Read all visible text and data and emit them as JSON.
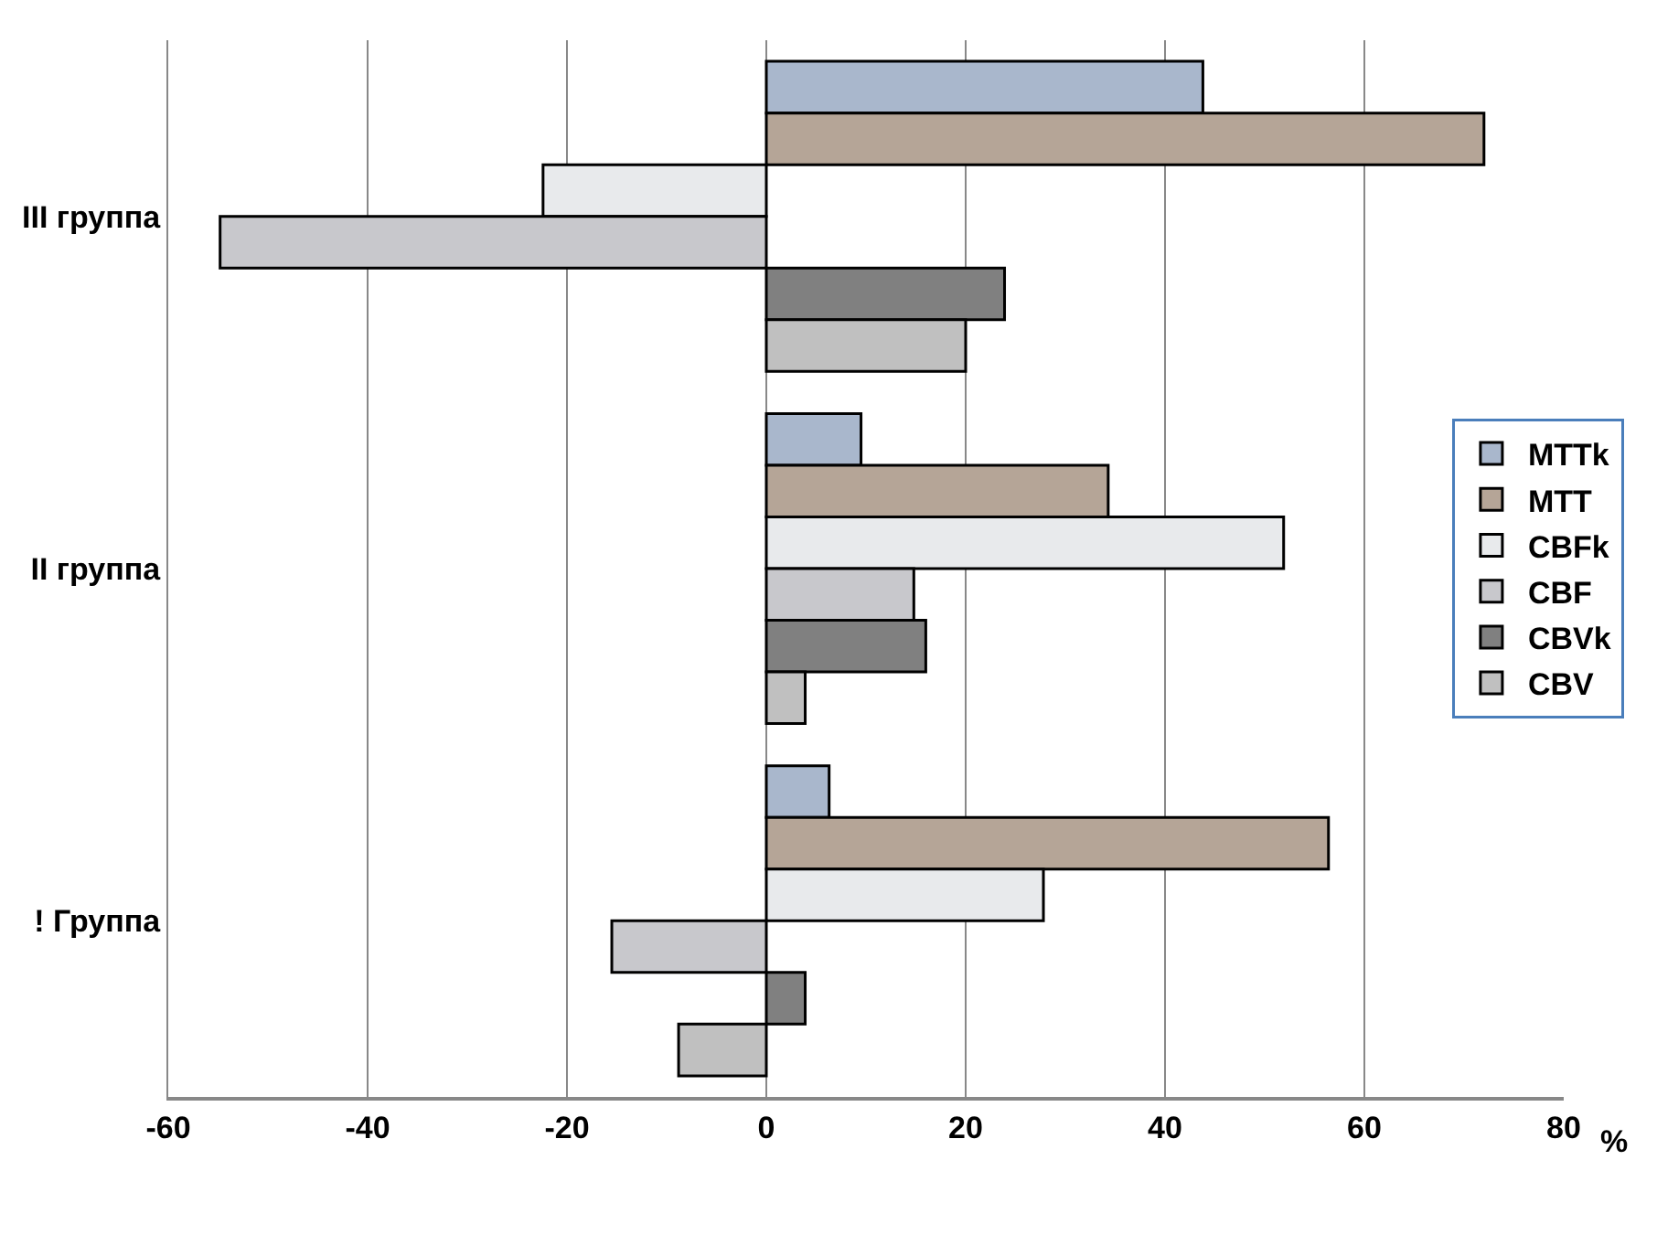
{
  "chart_data": {
    "type": "bar",
    "orientation": "horizontal",
    "xlabel": "%",
    "categories": [
      "III группа",
      "II группа",
      "! Группа"
    ],
    "series": [
      {
        "name": "MTTk",
        "color": "#a9b7cc",
        "values": [
          43.8,
          9.5,
          6.3
        ]
      },
      {
        "name": "MTT",
        "color": "#b5a597",
        "values": [
          72,
          34.3,
          56.4
        ]
      },
      {
        "name": "CBFk",
        "color": "#e8eaec",
        "values": [
          -22.4,
          51.9,
          27.8
        ]
      },
      {
        "name": "CBF",
        "color": "#c8c8cc",
        "values": [
          -54.8,
          14.8,
          -15.5
        ]
      },
      {
        "name": "CBVk",
        "color": "#808080",
        "values": [
          23.9,
          16,
          3.9
        ]
      },
      {
        "name": "CBV",
        "color": "#c0c0c0",
        "values": [
          20,
          3.9,
          -8.8
        ]
      }
    ],
    "xlim": [
      -60,
      80
    ],
    "xticks": [
      -60,
      -40,
      -20,
      0,
      20,
      40,
      60,
      80
    ],
    "grid": "x",
    "legend": "right"
  }
}
